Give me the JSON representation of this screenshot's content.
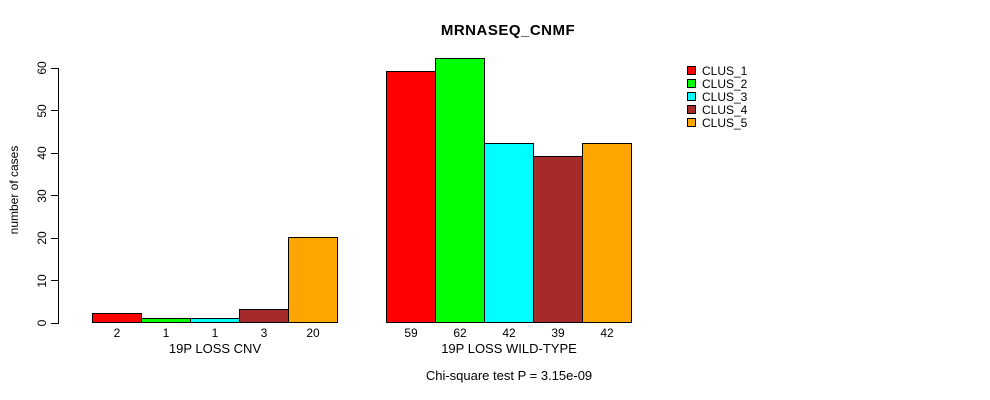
{
  "chart_data": {
    "type": "bar",
    "title": "MRNASEQ_CNMF",
    "ylabel": "number of cases",
    "xlabel": "",
    "ylim": [
      0,
      60
    ],
    "yticks": [
      0,
      10,
      20,
      30,
      40,
      50,
      60
    ],
    "grid": false,
    "legend_position": "right",
    "bar_value_labels_shown": true,
    "categories": [
      "19P LOSS CNV",
      "19P LOSS WILD-TYPE"
    ],
    "series": [
      {
        "name": "CLUS_1",
        "color": "#FF0000",
        "values": [
          2,
          59
        ]
      },
      {
        "name": "CLUS_2",
        "color": "#00FF00",
        "values": [
          1,
          62
        ]
      },
      {
        "name": "CLUS_3",
        "color": "#00FFFF",
        "values": [
          1,
          42
        ]
      },
      {
        "name": "CLUS_4",
        "color": "#A52A2A",
        "values": [
          3,
          39
        ]
      },
      {
        "name": "CLUS_5",
        "color": "#FFA500",
        "values": [
          20,
          42
        ]
      }
    ],
    "annotation": "Chi-square test P = 3.15e-09"
  }
}
